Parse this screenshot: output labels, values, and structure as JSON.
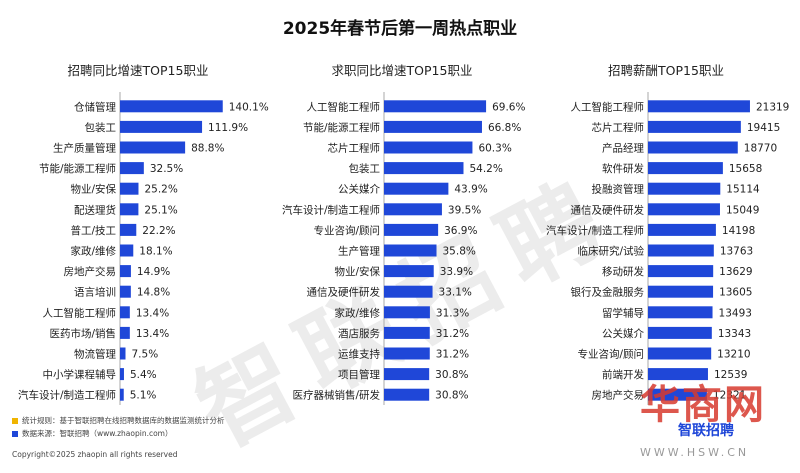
{
  "title": "2025年春节后第一周热点职业",
  "watermark": "智联招聘",
  "panels": [
    {
      "title": "招聘同比增速TOP15职业"
    },
    {
      "title": "求职同比增速TOP15职业"
    },
    {
      "title": "招聘薪酬TOP15职业"
    }
  ],
  "chart_data": [
    {
      "type": "bar",
      "title": "招聘同比增速TOP15职业",
      "categories": [
        "仓储管理",
        "包装工",
        "生产质量管理",
        "节能/能源工程师",
        "物业/安保",
        "配送理货",
        "普工/技工",
        "家政/维修",
        "房地产交易",
        "语言培训",
        "人工智能工程师",
        "医药市场/销售",
        "物流管理",
        "中小学课程辅导",
        "汽车设计/制造工程师"
      ],
      "values": [
        140.1,
        111.9,
        88.8,
        32.5,
        25.2,
        25.1,
        22.2,
        18.1,
        14.9,
        14.8,
        13.4,
        13.4,
        7.5,
        5.4,
        5.1
      ],
      "labels": [
        "140.1%",
        "111.9%",
        "88.8%",
        "32.5%",
        "25.2%",
        "25.1%",
        "22.2%",
        "18.1%",
        "14.9%",
        "14.8%",
        "13.4%",
        "13.4%",
        "7.5%",
        "5.4%",
        "5.1%"
      ],
      "xlim": [
        0,
        150
      ],
      "color": "#1f47d8"
    },
    {
      "type": "bar",
      "title": "求职同比增速TOP15职业",
      "categories": [
        "人工智能工程师",
        "节能/能源工程师",
        "芯片工程师",
        "包装工",
        "公关媒介",
        "汽车设计/制造工程师",
        "专业咨询/顾问",
        "生产管理",
        "物业/安保",
        "通信及硬件研发",
        "家政/维修",
        "酒店服务",
        "运维支持",
        "项目管理",
        "医疗器械销售/研发"
      ],
      "values": [
        69.6,
        66.8,
        60.3,
        54.2,
        43.9,
        39.5,
        36.9,
        35.8,
        33.9,
        33.1,
        31.3,
        31.2,
        31.2,
        30.8,
        30.8
      ],
      "labels": [
        "69.6%",
        "66.8%",
        "60.3%",
        "54.2%",
        "43.9%",
        "39.5%",
        "36.9%",
        "35.8%",
        "33.9%",
        "33.1%",
        "31.3%",
        "31.2%",
        "31.2%",
        "30.8%",
        "30.8%"
      ],
      "xlim": [
        0,
        75
      ],
      "color": "#1f47d8"
    },
    {
      "type": "bar",
      "title": "招聘薪酬TOP15职业",
      "categories": [
        "人工智能工程师",
        "芯片工程师",
        "产品经理",
        "软件研发",
        "投融资管理",
        "通信及硬件研发",
        "汽车设计/制造工程师",
        "临床研究/试验",
        "移动研发",
        "银行及金融服务",
        "留学辅导",
        "公关媒介",
        "专业咨询/顾问",
        "前端开发",
        "房地产交易"
      ],
      "values": [
        21319,
        19415,
        18770,
        15658,
        15114,
        15049,
        14198,
        13763,
        13629,
        13605,
        13493,
        13343,
        13210,
        12539,
        12321
      ],
      "labels": [
        "21319",
        "19415",
        "18770",
        "15658",
        "15114",
        "15049",
        "14198",
        "13763",
        "13629",
        "13605",
        "13493",
        "13343",
        "13210",
        "12539",
        "12321"
      ],
      "xlim": [
        0,
        23000
      ],
      "color": "#1f47d8"
    }
  ],
  "footer": {
    "note": "统计规则：基于智联招聘在线招聘数据库的数据监测统计分析",
    "source": "数据来源：智联招聘（www.zhaopin.com）",
    "note_color": "#f0b400",
    "source_color": "#1f47d8"
  },
  "copyright": "Copyright©2025 zhaopin all rights reserved",
  "brand": "智联招聘",
  "site_logo": "华商网",
  "site_url": "WWW.HSW.CN"
}
